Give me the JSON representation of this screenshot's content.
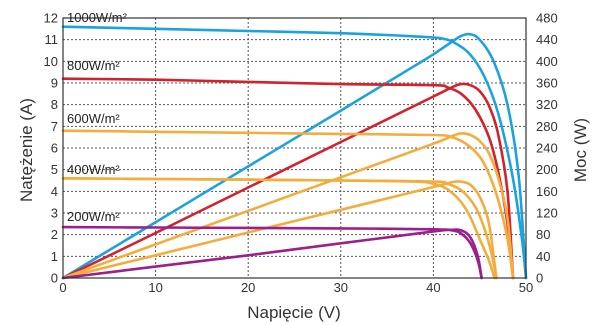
{
  "chart_data": {
    "type": "line",
    "xlabel": "Napięcie (V)",
    "ylabel_left": "Natężenie (A)",
    "ylabel_right": "Moc (W)",
    "xlim": [
      0,
      50
    ],
    "ylim_left": [
      0,
      12
    ],
    "ylim_right": [
      0,
      480
    ],
    "x_ticks": [
      0,
      10,
      20,
      30,
      40,
      50
    ],
    "y_left_ticks": [
      0,
      1,
      2,
      3,
      4,
      5,
      6,
      7,
      8,
      9,
      10,
      11,
      12
    ],
    "y_right_ticks": [
      0,
      40,
      80,
      120,
      160,
      200,
      240,
      280,
      320,
      360,
      400,
      440,
      480
    ],
    "grid": true,
    "irradiance_labels": [
      "1000W/m²",
      "800W/m²",
      "600W/m²",
      "400W/m²",
      "200W/m²"
    ],
    "series": [
      {
        "name": "1000W/m²",
        "color": "#1ba3df",
        "current": {
          "x": [
            0,
            10,
            20,
            30,
            38,
            41,
            42.5,
            44,
            45.5,
            47,
            48.5,
            49.5,
            50
          ],
          "y": [
            11.6,
            11.5,
            11.4,
            11.3,
            11.15,
            11.05,
            10.8,
            10.3,
            9.3,
            7.6,
            4.8,
            2.0,
            0
          ]
        },
        "power": {
          "x": [
            0,
            10,
            20,
            30,
            38,
            40,
            42,
            43,
            44,
            45,
            46.5,
            48,
            49.2,
            50
          ],
          "y": [
            0,
            103,
            206,
            309,
            392,
            413,
            436,
            447,
            450,
            440,
            400,
            320,
            190,
            0
          ]
        }
      },
      {
        "name": "800W/m²",
        "color": "#d3212d",
        "current": {
          "x": [
            0,
            10,
            20,
            30,
            40,
            41.5,
            43,
            44.5,
            46,
            47,
            48,
            48.6
          ],
          "y": [
            9.2,
            9.15,
            9.05,
            8.95,
            8.9,
            8.8,
            8.5,
            7.8,
            6.5,
            4.9,
            2.5,
            0
          ]
        },
        "power": {
          "x": [
            0,
            10,
            20,
            30,
            40,
            42,
            43,
            44,
            45,
            46,
            47,
            48,
            48.6
          ],
          "y": [
            0,
            83,
            167,
            251,
            335,
            352,
            358,
            356,
            345,
            318,
            265,
            160,
            0
          ]
        }
      },
      {
        "name": "600W/m²",
        "color": "#f4ad3d",
        "current": {
          "x": [
            0,
            10,
            20,
            30,
            40,
            42,
            43.5,
            45,
            46,
            47,
            48,
            48.6
          ],
          "y": [
            6.8,
            6.75,
            6.7,
            6.65,
            6.6,
            6.5,
            6.2,
            5.6,
            4.8,
            3.6,
            1.8,
            0
          ]
        },
        "power": {
          "x": [
            0,
            10,
            20,
            30,
            40,
            42,
            43,
            44,
            45,
            46,
            47,
            48,
            48.6
          ],
          "y": [
            0,
            62,
            124,
            186,
            248,
            262,
            267,
            264,
            253,
            230,
            185,
            110,
            0
          ]
        },
        "current_alt": {
          "x": [
            0,
            10,
            20,
            30,
            38,
            40,
            41.5,
            43,
            44,
            45,
            46,
            46.6
          ],
          "y": [
            4.6,
            4.57,
            4.54,
            4.5,
            4.45,
            4.35,
            4.1,
            3.5,
            2.8,
            1.8,
            0.8,
            0
          ]
        }
      },
      {
        "name": "400W/m²",
        "color": "#f4ad3d",
        "current": {
          "x": [
            0,
            10,
            20,
            30,
            40,
            41.5,
            43,
            44.5,
            45.5,
            46.3,
            46.8
          ],
          "y": [
            4.6,
            4.57,
            4.54,
            4.5,
            4.45,
            4.35,
            4.05,
            3.3,
            2.3,
            1.1,
            0
          ]
        },
        "power": {
          "x": [
            0,
            10,
            20,
            30,
            40,
            42,
            43,
            44,
            45,
            46,
            46.8
          ],
          "y": [
            0,
            42,
            84,
            126,
            168,
            177,
            178,
            172,
            150,
            100,
            0
          ]
        }
      },
      {
        "name": "200W/m²",
        "color": "#9b1f8c",
        "current": {
          "x": [
            0,
            10,
            20,
            30,
            40,
            42,
            43,
            44,
            44.8,
            45.2
          ],
          "y": [
            2.35,
            2.33,
            2.31,
            2.29,
            2.25,
            2.2,
            2.05,
            1.6,
            0.8,
            0
          ]
        },
        "power": {
          "x": [
            0,
            10,
            20,
            30,
            40,
            42,
            43,
            44,
            44.8,
            45.2
          ],
          "y": [
            0,
            21,
            42,
            64,
            86,
            89,
            88,
            75,
            40,
            0
          ]
        }
      }
    ]
  }
}
